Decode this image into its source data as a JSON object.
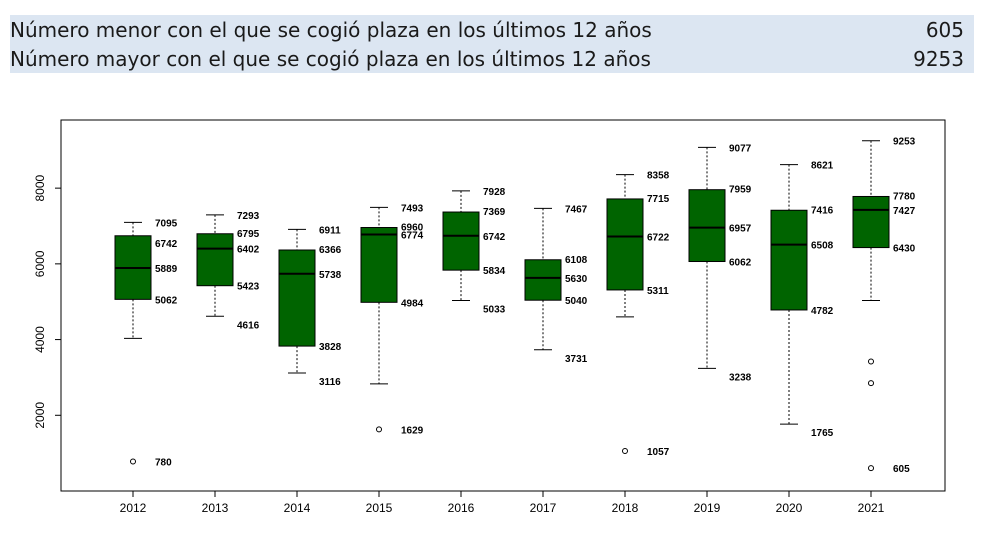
{
  "header": {
    "rows": [
      {
        "label": "Número menor con el que se cogió plaza en los últimos 12 años",
        "value": "605"
      },
      {
        "label": "Número mayor con el que se cogió plaza en los últimos 12 años",
        "value": "9253"
      }
    ]
  },
  "colors": {
    "box_fill": "#006400",
    "header_bg": "#dce6f2"
  },
  "chart_data": {
    "type": "boxplot",
    "title": "",
    "xlabel": "",
    "ylabel": "",
    "ylim": [
      0,
      9800
    ],
    "yticks": [
      2000,
      4000,
      6000,
      8000
    ],
    "grid": false,
    "legend": "none",
    "categories": [
      "2012",
      "2013",
      "2014",
      "2015",
      "2016",
      "2017",
      "2018",
      "2019",
      "2020",
      "2021"
    ],
    "boxes": [
      {
        "year": "2012",
        "min": 4030,
        "q1": 5062,
        "median": 5889,
        "q3": 6742,
        "max": 7095,
        "outliers": [
          780
        ],
        "labels": {
          "max": "7095",
          "q3": "6742",
          "median": "5889",
          "q1": "5062",
          "outliers": [
            "780"
          ]
        }
      },
      {
        "year": "2013",
        "min": 4616,
        "q1": 5423,
        "median": 6402,
        "q3": 6795,
        "max": 7293,
        "outliers": [],
        "labels": {
          "max": "7293",
          "q3": "6795",
          "median": "6402",
          "q1": "5423",
          "min": "4616"
        }
      },
      {
        "year": "2014",
        "min": 3116,
        "q1": 3828,
        "median": 5738,
        "q3": 6366,
        "max": 6911,
        "outliers": [],
        "labels": {
          "max": "6911",
          "q3": "6366",
          "median": "5738",
          "q1": "3828",
          "min": "3116"
        }
      },
      {
        "year": "2015",
        "min": 2830,
        "q1": 4984,
        "median": 6774,
        "q3": 6960,
        "max": 7493,
        "outliers": [
          1629
        ],
        "labels": {
          "max": "7493",
          "q3": "6960",
          "median": "6774",
          "q1": "4984",
          "outliers": [
            "1629"
          ]
        }
      },
      {
        "year": "2016",
        "min": 5033,
        "q1": 5834,
        "median": 6742,
        "q3": 7369,
        "max": 7928,
        "outliers": [],
        "labels": {
          "max": "7928",
          "q3": "7369",
          "median": "6742",
          "q1": "5834",
          "min": "5033"
        }
      },
      {
        "year": "2017",
        "min": 3731,
        "q1": 5040,
        "median": 5630,
        "q3": 6108,
        "max": 7467,
        "outliers": [],
        "labels": {
          "max": "7467",
          "q3": "6108",
          "median": "5630",
          "q1": "5040",
          "min": "3731"
        }
      },
      {
        "year": "2018",
        "min": 4600,
        "q1": 5311,
        "median": 6722,
        "q3": 7715,
        "max": 8358,
        "outliers": [
          1057
        ],
        "labels": {
          "max": "8358",
          "q3": "7715",
          "median": "6722",
          "q1": "5311",
          "outliers": [
            "1057"
          ]
        }
      },
      {
        "year": "2019",
        "min": 3238,
        "q1": 6062,
        "median": 6957,
        "q3": 7959,
        "max": 9077,
        "outliers": [],
        "labels": {
          "max": "9077",
          "q3": "7959",
          "median": "6957",
          "q1": "6062",
          "min": "3238"
        }
      },
      {
        "year": "2020",
        "min": 1765,
        "q1": 4782,
        "median": 6508,
        "q3": 7416,
        "max": 8621,
        "outliers": [],
        "labels": {
          "max": "8621",
          "q3": "7416",
          "median": "6508",
          "q1": "4782",
          "min": "1765"
        }
      },
      {
        "year": "2021",
        "min": 5033,
        "q1": 6430,
        "median": 7427,
        "q3": 7780,
        "max": 9253,
        "outliers": [
          3420,
          2850,
          605
        ],
        "labels": {
          "max": "9253",
          "q3": "7780",
          "median": "7427",
          "q1": "6430",
          "outliers": [
            "",
            "",
            "605"
          ]
        }
      }
    ]
  }
}
